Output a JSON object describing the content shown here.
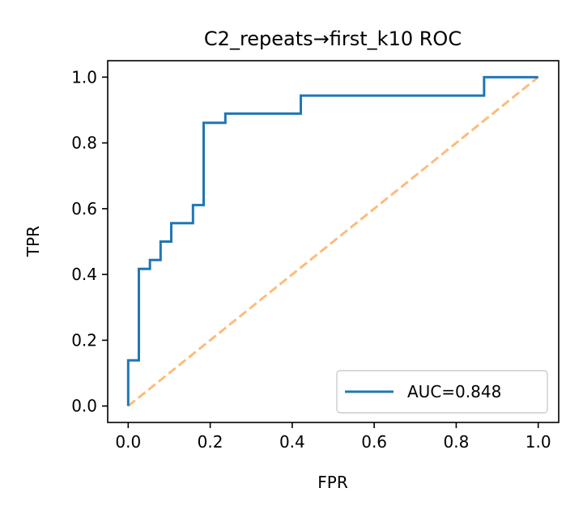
{
  "chart_data": {
    "type": "line",
    "title": "C2_repeats→first_k10 ROC",
    "xlabel": "FPR",
    "ylabel": "TPR",
    "xlim": [
      -0.05,
      1.05
    ],
    "ylim": [
      -0.05,
      1.05
    ],
    "xticks": [
      0.0,
      0.2,
      0.4,
      0.6,
      0.8,
      1.0
    ],
    "yticks": [
      0.0,
      0.2,
      0.4,
      0.6,
      0.8,
      1.0
    ],
    "xtick_labels": [
      "0.0",
      "0.2",
      "0.4",
      "0.6",
      "0.8",
      "1.0"
    ],
    "ytick_labels": [
      "0.0",
      "0.2",
      "0.4",
      "0.6",
      "0.8",
      "1.0"
    ],
    "grid": false,
    "legend_position": "lower right",
    "series": [
      {
        "name": "AUC=0.848",
        "color": "#1f77b4",
        "style": "solid",
        "x": [
          0.0,
          0.0,
          0.026,
          0.026,
          0.053,
          0.053,
          0.079,
          0.079,
          0.105,
          0.105,
          0.158,
          0.158,
          0.184,
          0.184,
          0.237,
          0.237,
          0.421,
          0.421,
          0.868,
          0.868,
          1.0
        ],
        "y": [
          0.0,
          0.139,
          0.139,
          0.417,
          0.417,
          0.444,
          0.444,
          0.5,
          0.5,
          0.556,
          0.556,
          0.611,
          0.611,
          0.861,
          0.861,
          0.889,
          0.889,
          0.944,
          0.944,
          1.0,
          1.0
        ]
      },
      {
        "color": "#ffbb78",
        "style": "dashed",
        "x": [
          0.0,
          1.0
        ],
        "y": [
          0.0,
          1.0
        ]
      }
    ]
  }
}
